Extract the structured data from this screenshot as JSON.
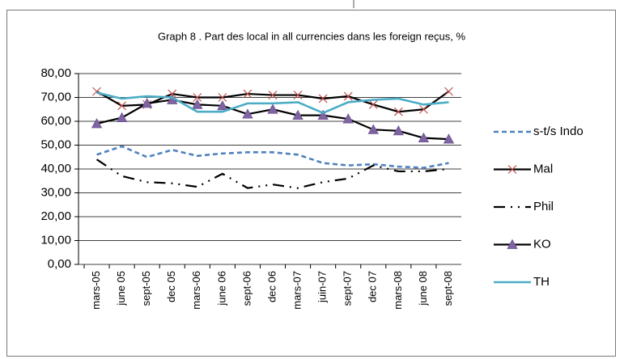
{
  "chart_data": {
    "type": "line",
    "title": "Graph 8 . Part des local in all currencies dans les foreign reçus, %",
    "categories": [
      "mars-05",
      "june 05",
      "sept-05",
      "dec 05",
      "mars-06",
      "june 06",
      "sept-06",
      "dec 06",
      "mars-07",
      "juin-07",
      "sept-07",
      "dec 07",
      "mars-08",
      "june 08",
      "sept-08"
    ],
    "series": [
      {
        "name": "s-t/s Indo",
        "color": "#4f81bd",
        "dash": "dashed",
        "marker": "none",
        "values": [
          46,
          49.5,
          45,
          48,
          45.5,
          46.5,
          47,
          47,
          46,
          42.5,
          41.5,
          42,
          41,
          40.5,
          42.5
        ]
      },
      {
        "name": "Mal",
        "color": "#000000",
        "dash": "solid",
        "marker": "x",
        "values": [
          72.5,
          66.5,
          67,
          71.5,
          70,
          70,
          71.5,
          71,
          71,
          69.5,
          70.5,
          67,
          64,
          65,
          72.5
        ]
      },
      {
        "name": "Phil",
        "color": "#000000",
        "dash": "dashdot",
        "marker": "none",
        "values": [
          44,
          37,
          34.5,
          34,
          32.5,
          38,
          32,
          33.5,
          32,
          34.5,
          36,
          41.5,
          39,
          39,
          40
        ]
      },
      {
        "name": "KO",
        "color": "#000000",
        "dash": "solid",
        "marker": "triangle",
        "values": [
          59,
          61.5,
          67.5,
          69,
          67,
          66.5,
          63,
          65,
          62.5,
          62.5,
          61,
          56.5,
          56,
          53,
          52.5
        ]
      },
      {
        "name": "TH",
        "color": "#4bacc6",
        "dash": "solid",
        "marker": "none",
        "values": [
          72,
          69.5,
          70.5,
          70,
          64,
          64,
          67.5,
          67.5,
          68,
          63.5,
          68,
          69,
          69.5,
          67,
          68
        ]
      }
    ],
    "ylim": [
      0,
      80
    ],
    "yticks": [
      {
        "value": 0,
        "label": "0,00"
      },
      {
        "value": 10,
        "label": "10,00"
      },
      {
        "value": 20,
        "label": "20,00"
      },
      {
        "value": 30,
        "label": "30,00"
      },
      {
        "value": 40,
        "label": "40,00"
      },
      {
        "value": 50,
        "label": "50,00"
      },
      {
        "value": 60,
        "label": "60,00"
      },
      {
        "value": 70,
        "label": "70,00"
      },
      {
        "value": 80,
        "label": "80,00"
      }
    ],
    "grid": true,
    "legend": "right"
  }
}
